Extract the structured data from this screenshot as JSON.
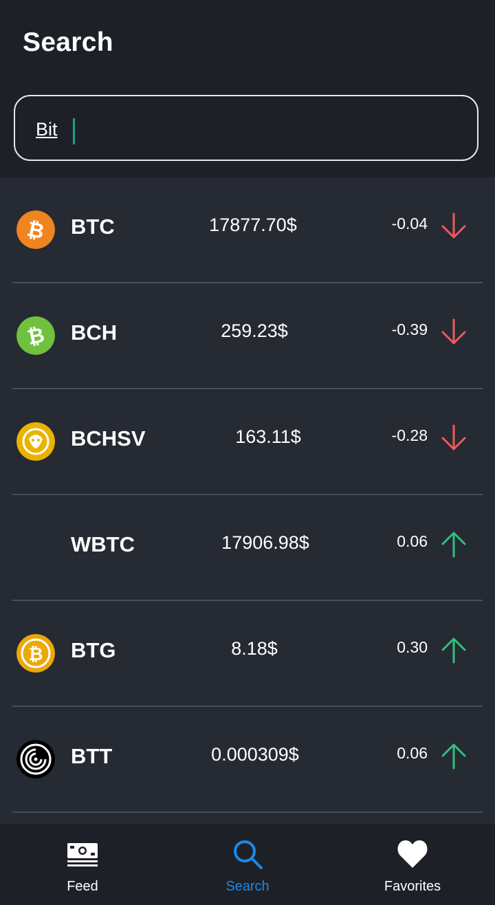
{
  "header": {
    "title": "Search"
  },
  "search": {
    "value": "Bit"
  },
  "coins": [
    {
      "symbol": "BTC",
      "price": "17877.70$",
      "change": "-0.04",
      "direction": "down",
      "icon": "bitcoin-icon",
      "icon_color": "#f0841f"
    },
    {
      "symbol": "BCH",
      "price": "259.23$",
      "change": "-0.39",
      "direction": "down",
      "icon": "bitcoin-cash-icon",
      "icon_color": "#6fc13e"
    },
    {
      "symbol": "BCHSV",
      "price": "163.11$",
      "change": "-0.28",
      "direction": "down",
      "icon": "bitcoin-sv-icon",
      "icon_color": "#eab300"
    },
    {
      "symbol": "WBTC",
      "price": "17906.98$",
      "change": "0.06",
      "direction": "up",
      "icon": "",
      "icon_color": ""
    },
    {
      "symbol": "BTG",
      "price": "8.18$",
      "change": "0.30",
      "direction": "up",
      "icon": "bitcoin-gold-icon",
      "icon_color": "#eba809"
    },
    {
      "symbol": "BTT",
      "price": "0.000309$",
      "change": "0.06",
      "direction": "up",
      "icon": "bittorrent-icon",
      "icon_color": "#000000"
    }
  ],
  "colors": {
    "down": "#f05a5a",
    "up": "#2fc27a",
    "active_nav": "#1e88e5"
  },
  "nav": [
    {
      "label": "Feed",
      "icon": "money-icon",
      "active": false
    },
    {
      "label": "Search",
      "icon": "search-icon",
      "active": true
    },
    {
      "label": "Favorites",
      "icon": "heart-icon",
      "active": false
    }
  ]
}
